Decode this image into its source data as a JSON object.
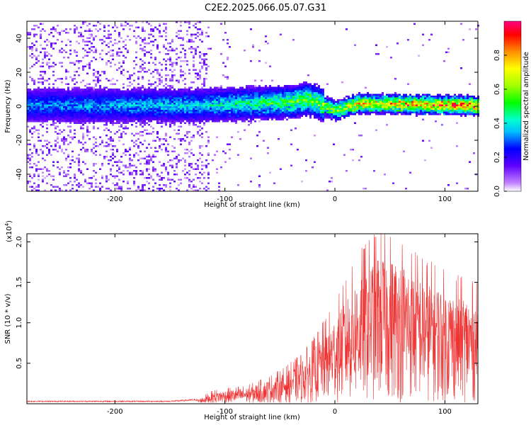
{
  "title": "C2E2.2025.066.05.07.G31",
  "chart_data": [
    {
      "type": "heatmap",
      "xlabel": "Height of straight line (km)",
      "ylabel": "Frequency (Hz)",
      "xlim": [
        -280,
        130
      ],
      "ylim": [
        -50,
        50
      ],
      "xticks": [
        -200,
        -100,
        0,
        100
      ],
      "yticks": [
        -40,
        -20,
        0,
        20,
        40
      ],
      "colorbar": {
        "label": "Normalized spectral amplitude",
        "range": [
          0.0,
          1.0
        ],
        "ticks": [
          "0.0",
          "0.2",
          "0.4",
          "0.6",
          "0.8"
        ]
      },
      "signal_band": {
        "center_hz": [
          {
            "x": -280,
            "y": 1
          },
          {
            "x": -120,
            "y": 1
          },
          {
            "x": -80,
            "y": 2
          },
          {
            "x": -40,
            "y": 3
          },
          {
            "x": -25,
            "y": 5
          },
          {
            "x": 0,
            "y": -2
          },
          {
            "x": 10,
            "y": 0
          },
          {
            "x": 20,
            "y": 2
          },
          {
            "x": 130,
            "y": 1
          }
        ],
        "peak_amplitude": [
          {
            "x": -280,
            "y": 0.22
          },
          {
            "x": -120,
            "y": 0.3
          },
          {
            "x": -60,
            "y": 0.42
          },
          {
            "x": 0,
            "y": 0.55
          },
          {
            "x": 20,
            "y": 0.7
          },
          {
            "x": 130,
            "y": 0.85
          }
        ]
      }
    },
    {
      "type": "line",
      "xlabel": "Height of straight line (km)",
      "ylabel": "SNR (10 * v/v)",
      "y_multiplier": "(x10",
      "y_multiplier_exp": "4",
      "ytick_labels": [
        "0.5",
        "1.0",
        "1.5",
        "2.0"
      ],
      "xlim": [
        -280,
        130
      ],
      "ylim": [
        0,
        21000
      ],
      "xticks": [
        -200,
        -100,
        0,
        100
      ],
      "yticks": [
        5000,
        10000,
        15000,
        20000
      ],
      "series": [
        {
          "color": "#ee3333",
          "envelope": [
            {
              "x": -280,
              "y": 300
            },
            {
              "x": -150,
              "y": 300
            },
            {
              "x": -125,
              "y": 500
            },
            {
              "x": -110,
              "y": 1500
            },
            {
              "x": -80,
              "y": 2000
            },
            {
              "x": -60,
              "y": 3000
            },
            {
              "x": -45,
              "y": 4000
            },
            {
              "x": -30,
              "y": 5500
            },
            {
              "x": -20,
              "y": 7000
            },
            {
              "x": -10,
              "y": 9000
            },
            {
              "x": 0,
              "y": 11000
            },
            {
              "x": 10,
              "y": 13500
            },
            {
              "x": 25,
              "y": 17000
            },
            {
              "x": 40,
              "y": 19000
            },
            {
              "x": 60,
              "y": 18000
            },
            {
              "x": 80,
              "y": 16000
            },
            {
              "x": 100,
              "y": 14500
            },
            {
              "x": 130,
              "y": 13000
            }
          ]
        }
      ]
    }
  ]
}
